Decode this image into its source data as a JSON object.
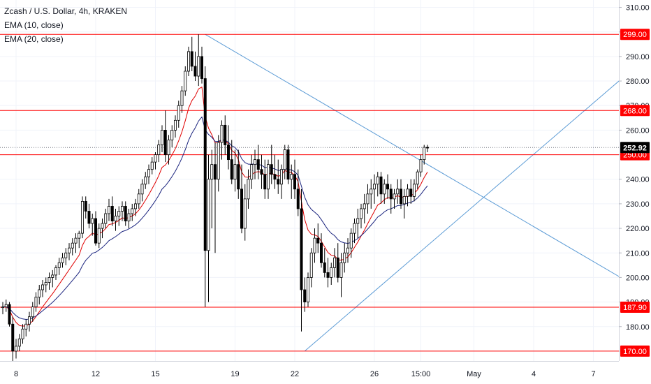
{
  "header": {
    "symbol_line": "Zcash / U.S. Dollar, 4h, KRAKEN",
    "indicators": [
      "EMA (10, close)",
      "EMA (20, close)"
    ]
  },
  "colors": {
    "background": "#ffffff",
    "grid": "#f0f3fa",
    "axis_text": "#131722",
    "candle_body_up": "#ffffff",
    "candle_body_down": "#000000",
    "candle_outline": "#000000",
    "ema_10": "#e00000",
    "ema_20": "#1a237e",
    "trend_lines": "#5b9bd5",
    "horizontal_levels": "#ff0000",
    "price_tag": "#000000"
  },
  "chart_data": {
    "type": "candlestick",
    "title": "Zcash / U.S. Dollar, 4h, KRAKEN",
    "timeframe": "4h",
    "exchange": "KRAKEN",
    "y_axis": {
      "range": [
        166,
        313
      ],
      "ticks": [
        310,
        300,
        290,
        280,
        270,
        260,
        250,
        240,
        230,
        220,
        210,
        200,
        190,
        180,
        170
      ]
    },
    "x_axis": {
      "labels": [
        {
          "label": "8",
          "bar": 4
        },
        {
          "label": "12",
          "bar": 28
        },
        {
          "label": "15",
          "bar": 46
        },
        {
          "label": "19",
          "bar": 70
        },
        {
          "label": "22",
          "bar": 88
        },
        {
          "label": "26",
          "bar": 112
        },
        {
          "label": "15:00",
          "bar": 126
        },
        {
          "label": "May",
          "bar": 142
        },
        {
          "label": "4",
          "bar": 160
        },
        {
          "label": "7",
          "bar": 178
        }
      ]
    },
    "current_price": {
      "value": 252.92,
      "label": "252.92"
    },
    "horizontal_levels": [
      {
        "value": 299.0,
        "label": "299.00"
      },
      {
        "value": 268.0,
        "label": "268.00"
      },
      {
        "value": 250.0,
        "label": "250.00"
      },
      {
        "value": 187.9,
        "label": "187.90"
      },
      {
        "value": 170.0,
        "label": "170.00"
      }
    ],
    "trend_lines": [
      {
        "from": {
          "bar": 61,
          "price": 299.0
        },
        "to": {
          "bar": 190,
          "price": 197.0
        }
      },
      {
        "from": {
          "bar": 91,
          "price": 170.0
        },
        "to": {
          "bar": 190,
          "price": 285.0
        }
      }
    ],
    "candles": [
      [
        188,
        190,
        185,
        188
      ],
      [
        188,
        191,
        186,
        189
      ],
      [
        189,
        190,
        180,
        181
      ],
      [
        181,
        184,
        166,
        170
      ],
      [
        170,
        175,
        167,
        172
      ],
      [
        172,
        177,
        170,
        175
      ],
      [
        175,
        181,
        173,
        179
      ],
      [
        179,
        183,
        176,
        181
      ],
      [
        181,
        186,
        178,
        184
      ],
      [
        184,
        190,
        182,
        188
      ],
      [
        188,
        194,
        186,
        192
      ],
      [
        192,
        197,
        189,
        195
      ],
      [
        195,
        199,
        192,
        197
      ],
      [
        197,
        200,
        194,
        198
      ],
      [
        198,
        202,
        195,
        200
      ],
      [
        200,
        203,
        196,
        201
      ],
      [
        201,
        205,
        199,
        204
      ],
      [
        204,
        208,
        201,
        206
      ],
      [
        206,
        210,
        204,
        208
      ],
      [
        208,
        212,
        205,
        210
      ],
      [
        210,
        214,
        207,
        212
      ],
      [
        212,
        216,
        209,
        214
      ],
      [
        214,
        218,
        210,
        216
      ],
      [
        216,
        219,
        212,
        218
      ],
      [
        218,
        233,
        216,
        231
      ],
      [
        231,
        233,
        224,
        227
      ],
      [
        227,
        230,
        220,
        222
      ],
      [
        222,
        226,
        217,
        224
      ],
      [
        224,
        227,
        213,
        214
      ],
      [
        214,
        222,
        212,
        220
      ],
      [
        220,
        224,
        216,
        222
      ],
      [
        222,
        228,
        220,
        226
      ],
      [
        226,
        232,
        223,
        229
      ],
      [
        229,
        233,
        221,
        223
      ],
      [
        223,
        228,
        219,
        225
      ],
      [
        225,
        229,
        221,
        227
      ],
      [
        227,
        231,
        223,
        229
      ],
      [
        229,
        231,
        221,
        223
      ],
      [
        223,
        228,
        220,
        226
      ],
      [
        226,
        230,
        223,
        228
      ],
      [
        228,
        232,
        225,
        230
      ],
      [
        230,
        236,
        228,
        234
      ],
      [
        234,
        240,
        231,
        238
      ],
      [
        238,
        243,
        236,
        241
      ],
      [
        241,
        246,
        238,
        244
      ],
      [
        244,
        249,
        242,
        247
      ],
      [
        247,
        251,
        244,
        250
      ],
      [
        250,
        256,
        247,
        254
      ],
      [
        254,
        262,
        251,
        260
      ],
      [
        260,
        268,
        247,
        250
      ],
      [
        250,
        258,
        246,
        256
      ],
      [
        256,
        262,
        253,
        260
      ],
      [
        260,
        266,
        257,
        264
      ],
      [
        264,
        272,
        261,
        270
      ],
      [
        270,
        278,
        267,
        276
      ],
      [
        276,
        286,
        274,
        284
      ],
      [
        284,
        294,
        282,
        292
      ],
      [
        292,
        298,
        284,
        286
      ],
      [
        286,
        292,
        280,
        282
      ],
      [
        282,
        299,
        278,
        290
      ],
      [
        290,
        294,
        279,
        281
      ],
      [
        281,
        286,
        188,
        211
      ],
      [
        211,
        250,
        190,
        240
      ],
      [
        240,
        252,
        220,
        246
      ],
      [
        246,
        255,
        210,
        240
      ],
      [
        240,
        258,
        235,
        255
      ],
      [
        255,
        264,
        248,
        262
      ],
      [
        262,
        266,
        250,
        254
      ],
      [
        254,
        262,
        244,
        248
      ],
      [
        248,
        256,
        238,
        240
      ],
      [
        240,
        252,
        235,
        246
      ],
      [
        246,
        252,
        232,
        236
      ],
      [
        236,
        246,
        218,
        220
      ],
      [
        220,
        238,
        215,
        232
      ],
      [
        232,
        244,
        228,
        240
      ],
      [
        240,
        250,
        236,
        246
      ],
      [
        246,
        252,
        240,
        248
      ],
      [
        248,
        254,
        240,
        244
      ],
      [
        244,
        250,
        236,
        242
      ],
      [
        242,
        248,
        232,
        236
      ],
      [
        236,
        248,
        232,
        246
      ],
      [
        246,
        254,
        238,
        242
      ],
      [
        242,
        250,
        236,
        240
      ],
      [
        240,
        248,
        234,
        238
      ],
      [
        238,
        246,
        232,
        244
      ],
      [
        244,
        254,
        240,
        252
      ],
      [
        252,
        254,
        238,
        240
      ],
      [
        240,
        246,
        232,
        242
      ],
      [
        242,
        248,
        232,
        236
      ],
      [
        236,
        244,
        225,
        228
      ],
      [
        228,
        236,
        178,
        195
      ],
      [
        195,
        200,
        186,
        190
      ],
      [
        190,
        202,
        188,
        200
      ],
      [
        200,
        212,
        196,
        210
      ],
      [
        210,
        220,
        206,
        216
      ],
      [
        216,
        222,
        210,
        214
      ],
      [
        214,
        218,
        204,
        206
      ],
      [
        206,
        212,
        200,
        202
      ],
      [
        202,
        208,
        196,
        200
      ],
      [
        200,
        206,
        197,
        204
      ],
      [
        204,
        212,
        200,
        208
      ],
      [
        208,
        214,
        198,
        200
      ],
      [
        200,
        210,
        192,
        206
      ],
      [
        206,
        214,
        202,
        210
      ],
      [
        210,
        216,
        206,
        212
      ],
      [
        212,
        220,
        208,
        218
      ],
      [
        218,
        224,
        214,
        222
      ],
      [
        222,
        228,
        216,
        224
      ],
      [
        224,
        230,
        220,
        228
      ],
      [
        228,
        234,
        222,
        230
      ],
      [
        230,
        238,
        226,
        234
      ],
      [
        234,
        240,
        228,
        236
      ],
      [
        236,
        242,
        230,
        238
      ],
      [
        238,
        243,
        233,
        241
      ],
      [
        241,
        243,
        230,
        234
      ],
      [
        234,
        240,
        230,
        238
      ],
      [
        238,
        242,
        232,
        236
      ],
      [
        236,
        238,
        226,
        232
      ],
      [
        232,
        236,
        228,
        234
      ],
      [
        234,
        240,
        230,
        236
      ],
      [
        236,
        240,
        228,
        230
      ],
      [
        230,
        236,
        224,
        233
      ],
      [
        233,
        238,
        229,
        236
      ],
      [
        236,
        240,
        230,
        233
      ],
      [
        233,
        240,
        231,
        238
      ],
      [
        238,
        244,
        236,
        243
      ],
      [
        243,
        250,
        241,
        248
      ],
      [
        248,
        254,
        246,
        253
      ],
      [
        253,
        254,
        251,
        252.92
      ]
    ]
  }
}
